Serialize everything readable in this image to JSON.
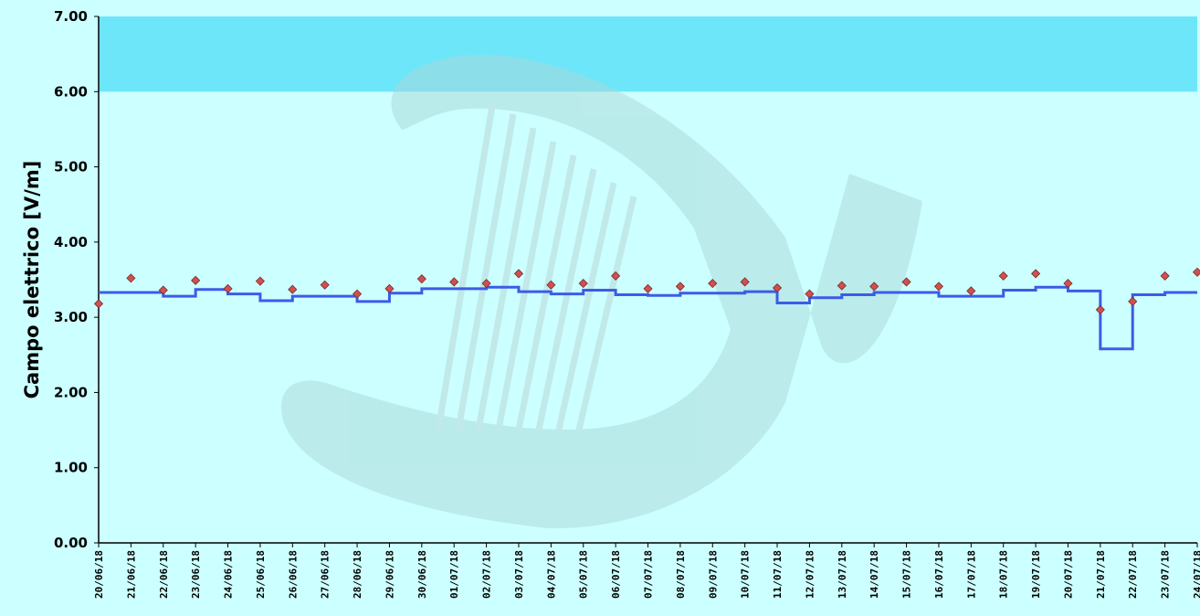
{
  "chart_data": {
    "type": "scatter",
    "title": "",
    "xlabel": "",
    "ylabel": "Campo elettrico [V/m]",
    "ylim": [
      0,
      7
    ],
    "yticks": [
      "0.00",
      "1.00",
      "2.00",
      "3.00",
      "4.00",
      "5.00",
      "6.00",
      "7.00"
    ],
    "xticks": [
      "20/06/18",
      "21/06/18",
      "22/06/18",
      "23/06/18",
      "24/06/18",
      "25/06/18",
      "26/06/18",
      "27/06/18",
      "28/06/18",
      "29/06/18",
      "30/06/18",
      "01/07/18",
      "02/07/18",
      "03/07/18",
      "04/07/18",
      "05/07/18",
      "06/07/18",
      "07/07/18",
      "08/07/18",
      "09/07/18",
      "10/07/18",
      "11/07/18",
      "12/07/18",
      "13/07/18",
      "14/07/18",
      "15/07/18",
      "16/07/18",
      "17/07/18",
      "18/07/18",
      "19/07/18",
      "20/07/18",
      "21/07/18",
      "22/07/18",
      "23/07/18",
      "24/07/18"
    ],
    "xlim": [
      "20/06/18",
      "24/07/18"
    ],
    "threshold_band": {
      "from": 6,
      "to": 7,
      "color": "#6ee6fa"
    },
    "plot_background": "#ccffff",
    "grid": false,
    "legend": "none",
    "series": [
      {
        "type": "scatter",
        "marker": "diamond",
        "color": "#d05050",
        "values": [
          [
            "20/06/18",
            3.18
          ],
          [
            "21/06/18",
            3.52
          ],
          [
            "22/06/18",
            3.36
          ],
          [
            "23/06/18",
            3.49
          ],
          [
            "24/06/18",
            3.38
          ],
          [
            "25/06/18",
            3.48
          ],
          [
            "26/06/18",
            3.37
          ],
          [
            "27/06/18",
            3.43
          ],
          [
            "28/06/18",
            3.31
          ],
          [
            "29/06/18",
            3.38
          ],
          [
            "30/06/18",
            3.51
          ],
          [
            "01/07/18",
            3.47
          ],
          [
            "02/07/18",
            3.45
          ],
          [
            "03/07/18",
            3.58
          ],
          [
            "04/07/18",
            3.43
          ],
          [
            "05/07/18",
            3.45
          ],
          [
            "06/07/18",
            3.55
          ],
          [
            "07/07/18",
            3.38
          ],
          [
            "08/07/18",
            3.41
          ],
          [
            "09/07/18",
            3.45
          ],
          [
            "10/07/18",
            3.47
          ],
          [
            "11/07/18",
            3.39
          ],
          [
            "12/07/18",
            3.31
          ],
          [
            "13/07/18",
            3.42
          ],
          [
            "14/07/18",
            3.41
          ],
          [
            "15/07/18",
            3.47
          ],
          [
            "16/07/18",
            3.41
          ],
          [
            "17/07/18",
            3.35
          ],
          [
            "18/07/18",
            3.55
          ],
          [
            "19/07/18",
            3.58
          ],
          [
            "20/07/18",
            3.45
          ],
          [
            "21/07/18",
            3.1
          ],
          [
            "22/07/18",
            3.21
          ],
          [
            "23/07/18",
            3.55
          ],
          [
            "24/07/18",
            3.6
          ]
        ]
      },
      {
        "type": "line",
        "step": true,
        "color": "#3b5ce8",
        "values": [
          [
            "20/06/18",
            3.33
          ],
          [
            "22/06/18",
            3.28
          ],
          [
            "23/06/18",
            3.37
          ],
          [
            "24/06/18",
            3.31
          ],
          [
            "25/06/18",
            3.22
          ],
          [
            "26/06/18",
            3.28
          ],
          [
            "28/06/18",
            3.21
          ],
          [
            "29/06/18",
            3.32
          ],
          [
            "30/06/18",
            3.38
          ],
          [
            "02/07/18",
            3.4
          ],
          [
            "03/07/18",
            3.34
          ],
          [
            "04/07/18",
            3.31
          ],
          [
            "05/07/18",
            3.36
          ],
          [
            "06/07/18",
            3.3
          ],
          [
            "07/07/18",
            3.29
          ],
          [
            "08/07/18",
            3.32
          ],
          [
            "10/07/18",
            3.34
          ],
          [
            "11/07/18",
            3.19
          ],
          [
            "12/07/18",
            3.26
          ],
          [
            "13/07/18",
            3.3
          ],
          [
            "14/07/18",
            3.33
          ],
          [
            "16/07/18",
            3.28
          ],
          [
            "18/07/18",
            3.36
          ],
          [
            "19/07/18",
            3.4
          ],
          [
            "20/07/18",
            3.35
          ],
          [
            "21/07/18",
            2.58
          ],
          [
            "22/07/18",
            3.3
          ],
          [
            "23/07/18",
            3.33
          ],
          [
            "24/07/18",
            3.33
          ]
        ]
      }
    ]
  }
}
